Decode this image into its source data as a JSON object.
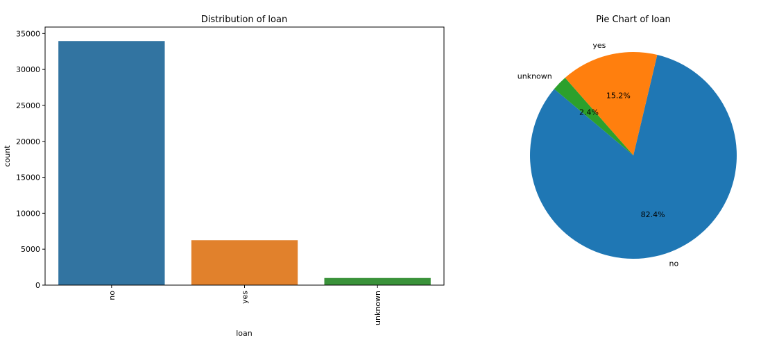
{
  "chart_data": [
    {
      "type": "bar",
      "title": "Distribution of loan",
      "xlabel": "loan",
      "ylabel": "count",
      "categories": [
        "no",
        "yes",
        "unknown"
      ],
      "values": [
        33950,
        6248,
        990
      ],
      "colors": [
        "#3274a1",
        "#e1812c",
        "#3a923a"
      ],
      "ylim": [
        0,
        35900
      ],
      "yticks": [
        0,
        5000,
        10000,
        15000,
        20000,
        25000,
        30000,
        35000
      ],
      "ytick_labels": [
        "0",
        "5000",
        "10000",
        "15000",
        "20000",
        "25000",
        "30000",
        "35000"
      ],
      "xtick_rotation": 90,
      "grid": false
    },
    {
      "type": "pie",
      "title": "Pie Chart of loan",
      "labels": [
        "no",
        "yes",
        "unknown"
      ],
      "values": [
        82.4,
        15.2,
        2.4
      ],
      "pct_labels": [
        "82.4%",
        "15.2%",
        "2.4%"
      ],
      "colors": [
        "#1f77b4",
        "#ff7f0e",
        "#2ca02c"
      ],
      "startangle": 140
    }
  ]
}
